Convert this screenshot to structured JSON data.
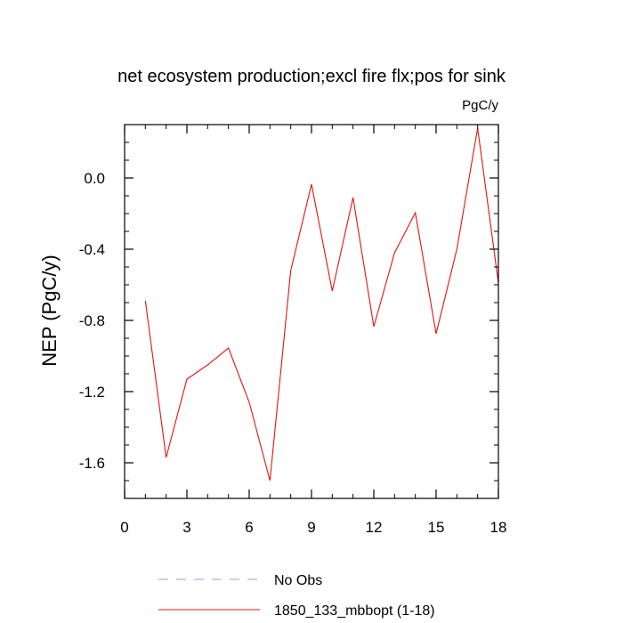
{
  "chart_data": {
    "type": "line",
    "title": "net ecosystem production;excl fire flx;pos for sink",
    "units": "PgC/y",
    "ylabel": "NEP  (PgC/y)",
    "xlabel": "",
    "xlim": [
      0,
      18
    ],
    "ylim": [
      -1.8,
      0.3
    ],
    "x_ticks": [
      0,
      3,
      6,
      9,
      12,
      15,
      18
    ],
    "x_tick_labels": [
      "0",
      "3",
      "6",
      "9",
      "12",
      "15",
      "18"
    ],
    "y_ticks": [
      -1.6,
      -1.2,
      -0.8,
      -0.4,
      0.0
    ],
    "y_tick_labels": [
      "-1.6",
      "-1.2",
      "-0.8",
      "-0.4",
      "0.0"
    ],
    "grid": false,
    "legend_position": "bottom",
    "series": [
      {
        "name": "1850_133_mbbopt (1-18)",
        "color": "#e8120c",
        "style": "solid",
        "x": [
          1,
          2,
          3,
          4,
          5,
          6,
          7,
          8,
          9,
          10,
          11,
          12,
          13,
          14,
          15,
          16,
          17,
          18
        ],
        "y": [
          -0.69,
          -1.57,
          -1.13,
          -1.05,
          -0.955,
          -1.26,
          -1.7,
          -0.52,
          -0.035,
          -0.635,
          -0.11,
          -0.835,
          -0.42,
          -0.195,
          -0.875,
          -0.4,
          0.28,
          -0.59
        ]
      }
    ],
    "legend": [
      {
        "label": "No Obs",
        "color": "#9a9aff",
        "style": "dashed"
      },
      {
        "label": "1850_133_mbbopt (1-18)",
        "color": "#e8120c",
        "style": "solid"
      }
    ]
  }
}
